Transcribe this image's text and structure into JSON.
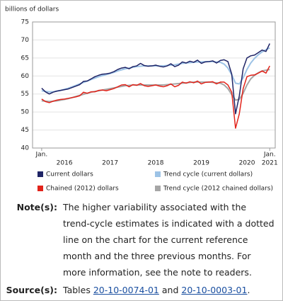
{
  "chart_data": {
    "type": "line",
    "y_label": "billions of dollars",
    "xlim": [
      2015.8,
      2021.12
    ],
    "ylim": [
      40,
      75
    ],
    "yticks": [
      40,
      45,
      50,
      55,
      60,
      65,
      70,
      75
    ],
    "grid": true,
    "xticks": [
      {
        "value": 2016,
        "label": "Jan."
      },
      {
        "value": 2021,
        "label": "Jan."
      }
    ],
    "x_year_labels": [
      {
        "value": 2016.5,
        "label": "2016"
      },
      {
        "value": 2017.5,
        "label": "2017"
      },
      {
        "value": 2018.5,
        "label": "2018"
      },
      {
        "value": 2019.5,
        "label": "2019"
      },
      {
        "value": 2020.5,
        "label": "2020"
      },
      {
        "value": 2021,
        "label": "2021"
      }
    ],
    "x": [
      2016,
      2016.083,
      2016.167,
      2016.25,
      2016.333,
      2016.417,
      2016.5,
      2016.583,
      2016.667,
      2016.75,
      2016.833,
      2016.917,
      2017,
      2017.083,
      2017.167,
      2017.25,
      2017.333,
      2017.417,
      2017.5,
      2017.583,
      2017.667,
      2017.75,
      2017.833,
      2017.917,
      2018,
      2018.083,
      2018.167,
      2018.25,
      2018.333,
      2018.417,
      2018.5,
      2018.583,
      2018.667,
      2018.75,
      2018.833,
      2018.917,
      2019,
      2019.083,
      2019.167,
      2019.25,
      2019.333,
      2019.417,
      2019.5,
      2019.583,
      2019.667,
      2019.75,
      2019.833,
      2019.917,
      2020,
      2020.083,
      2020.167,
      2020.25,
      2020.333,
      2020.417,
      2020.5,
      2020.583,
      2020.667,
      2020.75,
      2020.833,
      2020.917,
      2021
    ],
    "series": [
      {
        "name": "Trend cycle (current dollars)",
        "color": "#9dc3e6",
        "width": 2,
        "values": [
          55.9,
          55.7,
          55.6,
          55.6,
          55.8,
          56.0,
          56.3,
          56.6,
          57.0,
          57.4,
          57.8,
          58.2,
          58.6,
          59.0,
          59.4,
          59.8,
          60.1,
          60.4,
          60.7,
          61.0,
          61.4,
          61.7,
          62.0,
          62.2,
          62.4,
          62.6,
          62.7,
          62.8,
          62.8,
          62.8,
          62.8,
          62.8,
          62.8,
          62.9,
          63.0,
          63.1,
          63.3,
          63.5,
          63.6,
          63.7,
          63.8,
          63.9,
          63.9,
          64.0,
          64.0,
          64.0,
          63.9,
          63.8,
          63.3,
          62.2,
          60.3,
          58.0,
          57.8,
          59.5,
          61.8,
          63.6,
          64.9,
          65.9,
          66.7,
          67.3,
          67.8
        ]
      },
      {
        "name": "Trend cycle (2012 chained dollars)",
        "color": "#a6a6a6",
        "width": 2,
        "values": [
          53.1,
          53.0,
          52.9,
          53.0,
          53.1,
          53.3,
          53.5,
          53.7,
          54.0,
          54.3,
          54.6,
          54.9,
          55.2,
          55.5,
          55.7,
          55.9,
          56.1,
          56.3,
          56.5,
          56.7,
          56.9,
          57.1,
          57.3,
          57.4,
          57.5,
          57.5,
          57.5,
          57.5,
          57.5,
          57.5,
          57.5,
          57.5,
          57.5,
          57.6,
          57.7,
          57.8,
          57.9,
          58.0,
          58.1,
          58.2,
          58.3,
          58.3,
          58.3,
          58.3,
          58.3,
          58.2,
          58.1,
          58.0,
          57.5,
          56.5,
          54.8,
          53.3,
          53.5,
          55.2,
          57.5,
          59.2,
          60.2,
          60.9,
          61.4,
          61.6,
          61.8
        ]
      },
      {
        "name": "Current dollars",
        "color": "#1f2466",
        "width": 1.5,
        "values": [
          56.6,
          55.6,
          55.0,
          55.5,
          55.8,
          56.0,
          56.2,
          56.4,
          56.8,
          57.2,
          57.6,
          58.5,
          58.6,
          59.2,
          59.8,
          60.2,
          60.5,
          60.6,
          60.8,
          61.2,
          61.8,
          62.2,
          62.4,
          62.0,
          62.6,
          62.8,
          63.5,
          62.9,
          62.7,
          62.8,
          63.0,
          62.7,
          62.5,
          62.8,
          63.4,
          62.6,
          63.0,
          63.9,
          63.6,
          64.1,
          63.8,
          64.4,
          63.5,
          63.9,
          64.0,
          64.2,
          63.6,
          64.3,
          64.5,
          64.0,
          60.5,
          49.5,
          54.5,
          62.0,
          65.0,
          65.6,
          65.8,
          66.5,
          67.2,
          66.8,
          69.0
        ]
      },
      {
        "name": "Chained (2012) dollars",
        "color": "#e2231a",
        "width": 1.5,
        "values": [
          53.6,
          52.9,
          52.6,
          53.0,
          53.3,
          53.5,
          53.6,
          53.8,
          54.0,
          54.2,
          54.5,
          55.5,
          55.2,
          55.6,
          55.6,
          56.0,
          56.1,
          55.9,
          56.2,
          56.5,
          57.0,
          57.5,
          57.6,
          57.0,
          57.6,
          57.4,
          57.9,
          57.3,
          57.1,
          57.3,
          57.5,
          57.2,
          57.0,
          57.3,
          57.8,
          57.0,
          57.4,
          58.3,
          58.0,
          58.4,
          58.1,
          58.6,
          57.8,
          58.2,
          58.3,
          58.4,
          57.8,
          58.3,
          58.3,
          57.5,
          55.5,
          45.5,
          49.5,
          56.5,
          59.8,
          60.2,
          60.3,
          60.8,
          61.4,
          60.8,
          62.8
        ]
      }
    ],
    "legend_order": [
      2,
      0,
      3,
      1
    ]
  },
  "notes": {
    "label": "Note(s):",
    "text": "The higher variability associated with the trend-cycle estimates is indicated with a dotted line on the chart for the current reference month and the three previous months. For more information, see the note to readers."
  },
  "source": {
    "label": "Source(s):",
    "parts": [
      "Tables",
      "20-10-0074-01",
      "and",
      "20-10-0003-01",
      "."
    ]
  }
}
